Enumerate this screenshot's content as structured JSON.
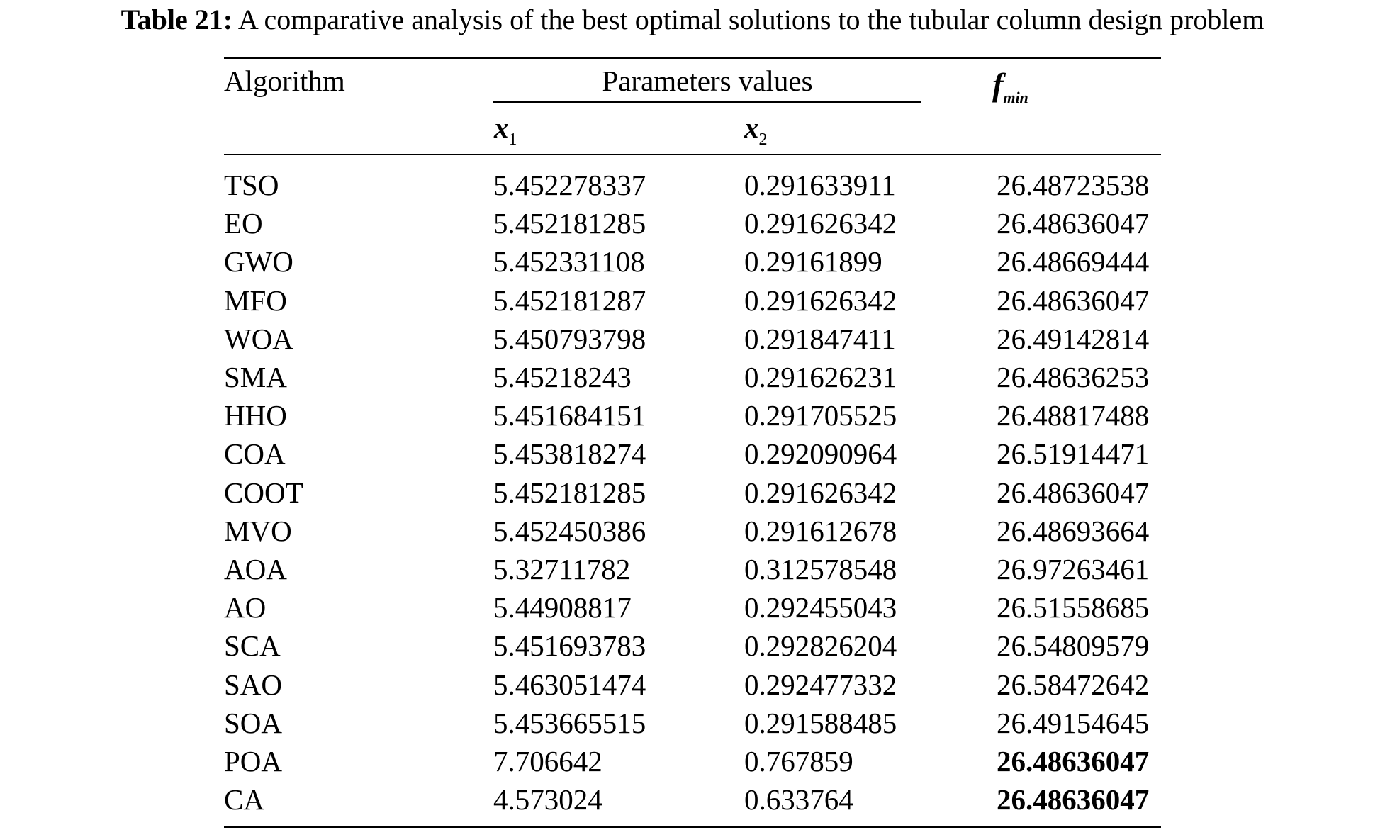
{
  "caption": {
    "label": "Table 21:",
    "text": " A comparative analysis of the best optimal solutions to the tubular column design problem"
  },
  "table": {
    "headers": {
      "algorithm": "Algorithm",
      "params_group": "Parameters values",
      "x1_var": "x",
      "x1_sub": "1",
      "x2_var": "x",
      "x2_sub": "2",
      "fmin_var": "f",
      "fmin_sub": "min"
    },
    "rows": [
      {
        "algorithm": "TSO",
        "x1": "5.452278337",
        "x2": "0.291633911",
        "fmin": "26.48723538",
        "bold": false
      },
      {
        "algorithm": "EO",
        "x1": "5.452181285",
        "x2": "0.291626342",
        "fmin": "26.48636047",
        "bold": false
      },
      {
        "algorithm": "GWO",
        "x1": "5.452331108",
        "x2": "0.29161899",
        "fmin": "26.48669444",
        "bold": false
      },
      {
        "algorithm": "MFO",
        "x1": "5.452181287",
        "x2": "0.291626342",
        "fmin": "26.48636047",
        "bold": false
      },
      {
        "algorithm": "WOA",
        "x1": "5.450793798",
        "x2": "0.291847411",
        "fmin": "26.49142814",
        "bold": false
      },
      {
        "algorithm": "SMA",
        "x1": "5.45218243",
        "x2": "0.291626231",
        "fmin": "26.48636253",
        "bold": false
      },
      {
        "algorithm": "HHO",
        "x1": "5.451684151",
        "x2": "0.291705525",
        "fmin": "26.48817488",
        "bold": false
      },
      {
        "algorithm": "COA",
        "x1": "5.453818274",
        "x2": "0.292090964",
        "fmin": "26.51914471",
        "bold": false
      },
      {
        "algorithm": "COOT",
        "x1": "5.452181285",
        "x2": "0.291626342",
        "fmin": "26.48636047",
        "bold": false
      },
      {
        "algorithm": "MVO",
        "x1": "5.452450386",
        "x2": "0.291612678",
        "fmin": "26.48693664",
        "bold": false
      },
      {
        "algorithm": "AOA",
        "x1": "5.32711782",
        "x2": "0.312578548",
        "fmin": "26.97263461",
        "bold": false
      },
      {
        "algorithm": "AO",
        "x1": "5.44908817",
        "x2": "0.292455043",
        "fmin": "26.51558685",
        "bold": false
      },
      {
        "algorithm": "SCA",
        "x1": "5.451693783",
        "x2": "0.292826204",
        "fmin": "26.54809579",
        "bold": false
      },
      {
        "algorithm": "SAO",
        "x1": "5.463051474",
        "x2": "0.292477332",
        "fmin": "26.58472642",
        "bold": false
      },
      {
        "algorithm": "SOA",
        "x1": "5.453665515",
        "x2": "0.291588485",
        "fmin": "26.49154645",
        "bold": false
      },
      {
        "algorithm": "POA",
        "x1": "7.706642",
        "x2": "0.767859",
        "fmin": "26.48636047",
        "bold": true
      },
      {
        "algorithm": "CA",
        "x1": "4.573024",
        "x2": "0.633764",
        "fmin": "26.48636047",
        "bold": true
      }
    ]
  }
}
